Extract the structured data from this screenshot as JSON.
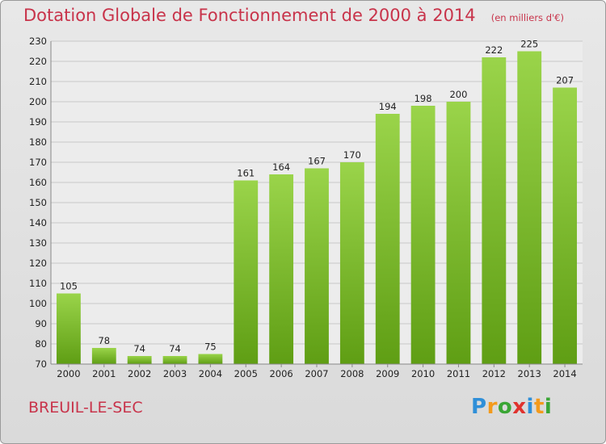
{
  "chart_data": {
    "type": "bar",
    "title": "Dotation Globale de Fonctionnement de 2000 à 2014",
    "subtitle": "(en milliers d'€)",
    "categories": [
      "2000",
      "2001",
      "2002",
      "2003",
      "2004",
      "2005",
      "2006",
      "2007",
      "2008",
      "2009",
      "2010",
      "2011",
      "2012",
      "2013",
      "2014"
    ],
    "values": [
      105,
      78,
      74,
      74,
      75,
      161,
      164,
      167,
      170,
      194,
      198,
      200,
      222,
      225,
      207
    ],
    "ylim": [
      70,
      230
    ],
    "yticks": [
      70,
      80,
      90,
      100,
      110,
      120,
      130,
      140,
      150,
      160,
      170,
      180,
      190,
      200,
      210,
      220,
      230
    ],
    "grid": true,
    "bar_color": "#7dbd2d"
  },
  "footer": {
    "town": "BREUIL-LE-SEC",
    "logo": "Proxiti",
    "logo_colors": [
      "#2f8fd8",
      "#f39a1c",
      "#3aa635",
      "#e0322e",
      "#2f8fd8",
      "#f39a1c",
      "#3aa635"
    ]
  }
}
